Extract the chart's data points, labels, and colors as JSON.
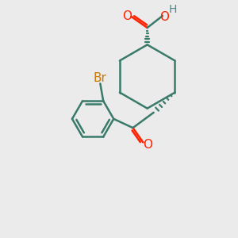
{
  "bg_color": "#ebebeb",
  "bond_color": "#3a7a6a",
  "bond_width": 1.8,
  "text_color_O": "#ff2200",
  "text_color_Br": "#cc7700",
  "text_color_H": "#4a8888",
  "font_size": 11,
  "figsize": [
    3.0,
    3.0
  ],
  "dpi": 100,
  "xlim": [
    0,
    10
  ],
  "ylim": [
    0,
    10
  ],
  "C1": [
    6.2,
    6.8
  ],
  "cyclohexane_r": 1.35,
  "cyclohexane_angles": [
    90,
    30,
    -30,
    -90,
    -150,
    150
  ]
}
